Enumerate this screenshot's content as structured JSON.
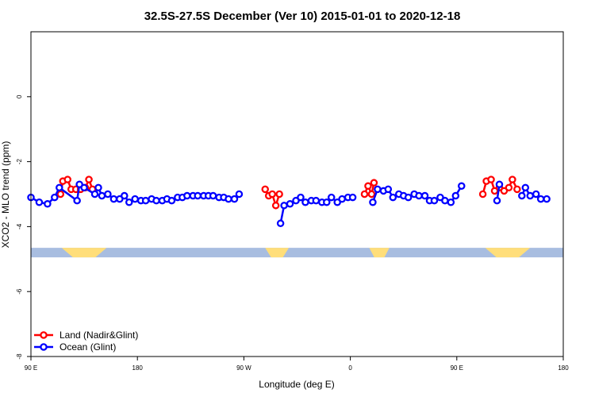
{
  "chart_data": {
    "type": "line",
    "title": "32.5S-27.5S December (Ver 10)   2015-01-01 to 2020-12-18",
    "xlabel": "Longitude (deg E)",
    "ylabel": "XCO2 - MLO trend (ppm)",
    "xlim": [
      90,
      540
    ],
    "ylim": [
      -8,
      2
    ],
    "x_ticks": [
      {
        "value": 90,
        "label": "90 E"
      },
      {
        "value": 180,
        "label": "180"
      },
      {
        "value": 270,
        "label": "90 W"
      },
      {
        "value": 360,
        "label": "0"
      },
      {
        "value": 450,
        "label": "90 E"
      },
      {
        "value": 540,
        "label": "180"
      }
    ],
    "y_ticks": [
      {
        "value": 0,
        "label": "0"
      },
      {
        "value": -2,
        "label": "-2"
      },
      {
        "value": -4,
        "label": "-4"
      },
      {
        "value": -6,
        "label": "-6"
      },
      {
        "value": -8,
        "label": "-8"
      }
    ],
    "band": {
      "y": -4.8,
      "ocean_color": "#a8bde0",
      "land_color": "#ffde7a",
      "land_segments": [
        [
          116,
          154
        ],
        [
          288,
          308
        ],
        [
          376,
          393
        ],
        [
          474,
          512
        ]
      ]
    },
    "legend": {
      "position": "bottom-left",
      "entries": [
        {
          "label": "Land (Nadir&Glint)",
          "color": "#ff0000"
        },
        {
          "label": "Ocean (Glint)",
          "color": "#0000ff"
        }
      ]
    },
    "series": [
      {
        "name": "Land (Nadir&Glint)",
        "color": "#ff0000",
        "points": [
          [
            115,
            -3.0
          ],
          [
            117,
            -2.6
          ],
          [
            121,
            -2.55
          ],
          [
            124,
            -2.85
          ],
          [
            128,
            -2.85
          ],
          [
            132,
            -2.85
          ],
          [
            136,
            -2.8
          ],
          [
            139,
            -2.55
          ],
          [
            142,
            -2.85
          ],
          [
            288,
            -2.85
          ],
          [
            291,
            -3.05
          ],
          [
            294,
            -3.0
          ],
          [
            297,
            -3.35
          ],
          [
            300,
            -3.0
          ],
          [
            372,
            -3.0
          ],
          [
            375,
            -2.75
          ],
          [
            378,
            -3.0
          ],
          [
            380,
            -2.65
          ],
          [
            472,
            -3.0
          ],
          [
            475,
            -2.6
          ],
          [
            479,
            -2.55
          ],
          [
            482,
            -2.9
          ],
          [
            486,
            -2.8
          ],
          [
            490,
            -2.9
          ],
          [
            494,
            -2.8
          ],
          [
            497,
            -2.55
          ],
          [
            501,
            -2.85
          ]
        ]
      },
      {
        "name": "Ocean (Glint)",
        "color": "#0000ff",
        "points": [
          [
            90,
            -3.1
          ],
          [
            97,
            -3.25
          ],
          [
            104,
            -3.3
          ],
          [
            110,
            -3.1
          ],
          [
            114,
            -2.8
          ],
          [
            129,
            -3.2
          ],
          [
            131,
            -2.7
          ],
          [
            135,
            -2.8
          ],
          [
            144,
            -3.0
          ],
          [
            147,
            -2.8
          ],
          [
            150,
            -3.05
          ],
          [
            155,
            -3.0
          ],
          [
            160,
            -3.15
          ],
          [
            165,
            -3.15
          ],
          [
            169,
            -3.05
          ],
          [
            173,
            -3.25
          ],
          [
            178,
            -3.15
          ],
          [
            183,
            -3.2
          ],
          [
            187,
            -3.2
          ],
          [
            192,
            -3.15
          ],
          [
            196,
            -3.2
          ],
          [
            201,
            -3.2
          ],
          [
            205,
            -3.15
          ],
          [
            209,
            -3.2
          ],
          [
            214,
            -3.1
          ],
          [
            218,
            -3.1
          ],
          [
            222,
            -3.05
          ],
          [
            227,
            -3.05
          ],
          [
            231,
            -3.05
          ],
          [
            236,
            -3.05
          ],
          [
            240,
            -3.05
          ],
          [
            244,
            -3.05
          ],
          [
            249,
            -3.1
          ],
          [
            253,
            -3.1
          ],
          [
            257,
            -3.15
          ],
          [
            262,
            -3.15
          ],
          [
            266,
            -3.0
          ],
          [
            301,
            -3.9
          ],
          [
            304,
            -3.35
          ],
          [
            309,
            -3.3
          ],
          [
            314,
            -3.2
          ],
          [
            318,
            -3.1
          ],
          [
            322,
            -3.25
          ],
          [
            327,
            -3.2
          ],
          [
            331,
            -3.2
          ],
          [
            336,
            -3.25
          ],
          [
            340,
            -3.25
          ],
          [
            344,
            -3.1
          ],
          [
            349,
            -3.25
          ],
          [
            353,
            -3.15
          ],
          [
            358,
            -3.1
          ],
          [
            362,
            -3.1
          ],
          [
            379,
            -3.25
          ],
          [
            383,
            -2.85
          ],
          [
            388,
            -2.9
          ],
          [
            392,
            -2.85
          ],
          [
            396,
            -3.1
          ],
          [
            401,
            -3.0
          ],
          [
            405,
            -3.05
          ],
          [
            409,
            -3.1
          ],
          [
            414,
            -3.0
          ],
          [
            418,
            -3.05
          ],
          [
            423,
            -3.05
          ],
          [
            427,
            -3.2
          ],
          [
            431,
            -3.2
          ],
          [
            436,
            -3.1
          ],
          [
            440,
            -3.2
          ],
          [
            445,
            -3.25
          ],
          [
            449,
            -3.05
          ],
          [
            454,
            -2.75
          ],
          [
            484,
            -3.2
          ],
          [
            486,
            -2.7
          ],
          [
            505,
            -3.05
          ],
          [
            508,
            -2.8
          ],
          [
            512,
            -3.05
          ],
          [
            517,
            -3.0
          ],
          [
            521,
            -3.15
          ],
          [
            526,
            -3.15
          ]
        ]
      }
    ]
  }
}
